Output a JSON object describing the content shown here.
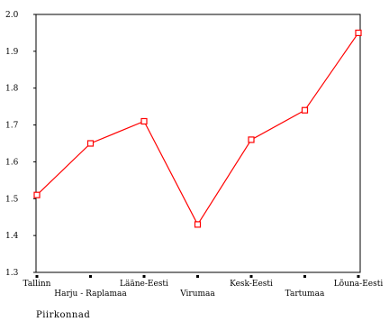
{
  "chart_data": {
    "type": "line",
    "title": "",
    "xlabel": "Piirkonnad",
    "ylabel": "",
    "categories": [
      "Tallinn",
      "Harju - Raplamaa",
      "Lääne-Eesti",
      "Virumaa",
      "Kesk-Eesti",
      "Tartumaa",
      "Lõuna-Eesti"
    ],
    "series": [
      {
        "values": [
          1.51,
          1.65,
          1.71,
          1.43,
          1.66,
          1.74,
          1.95
        ],
        "color": "#ff0000",
        "marker": "square"
      }
    ],
    "ylim": [
      1.3,
      2.0
    ],
    "yticks": [
      "1.3",
      "1.4",
      "1.5",
      "1.6",
      "1.7",
      "1.8",
      "1.9",
      "2.0"
    ],
    "grid": false,
    "legend": "none"
  }
}
